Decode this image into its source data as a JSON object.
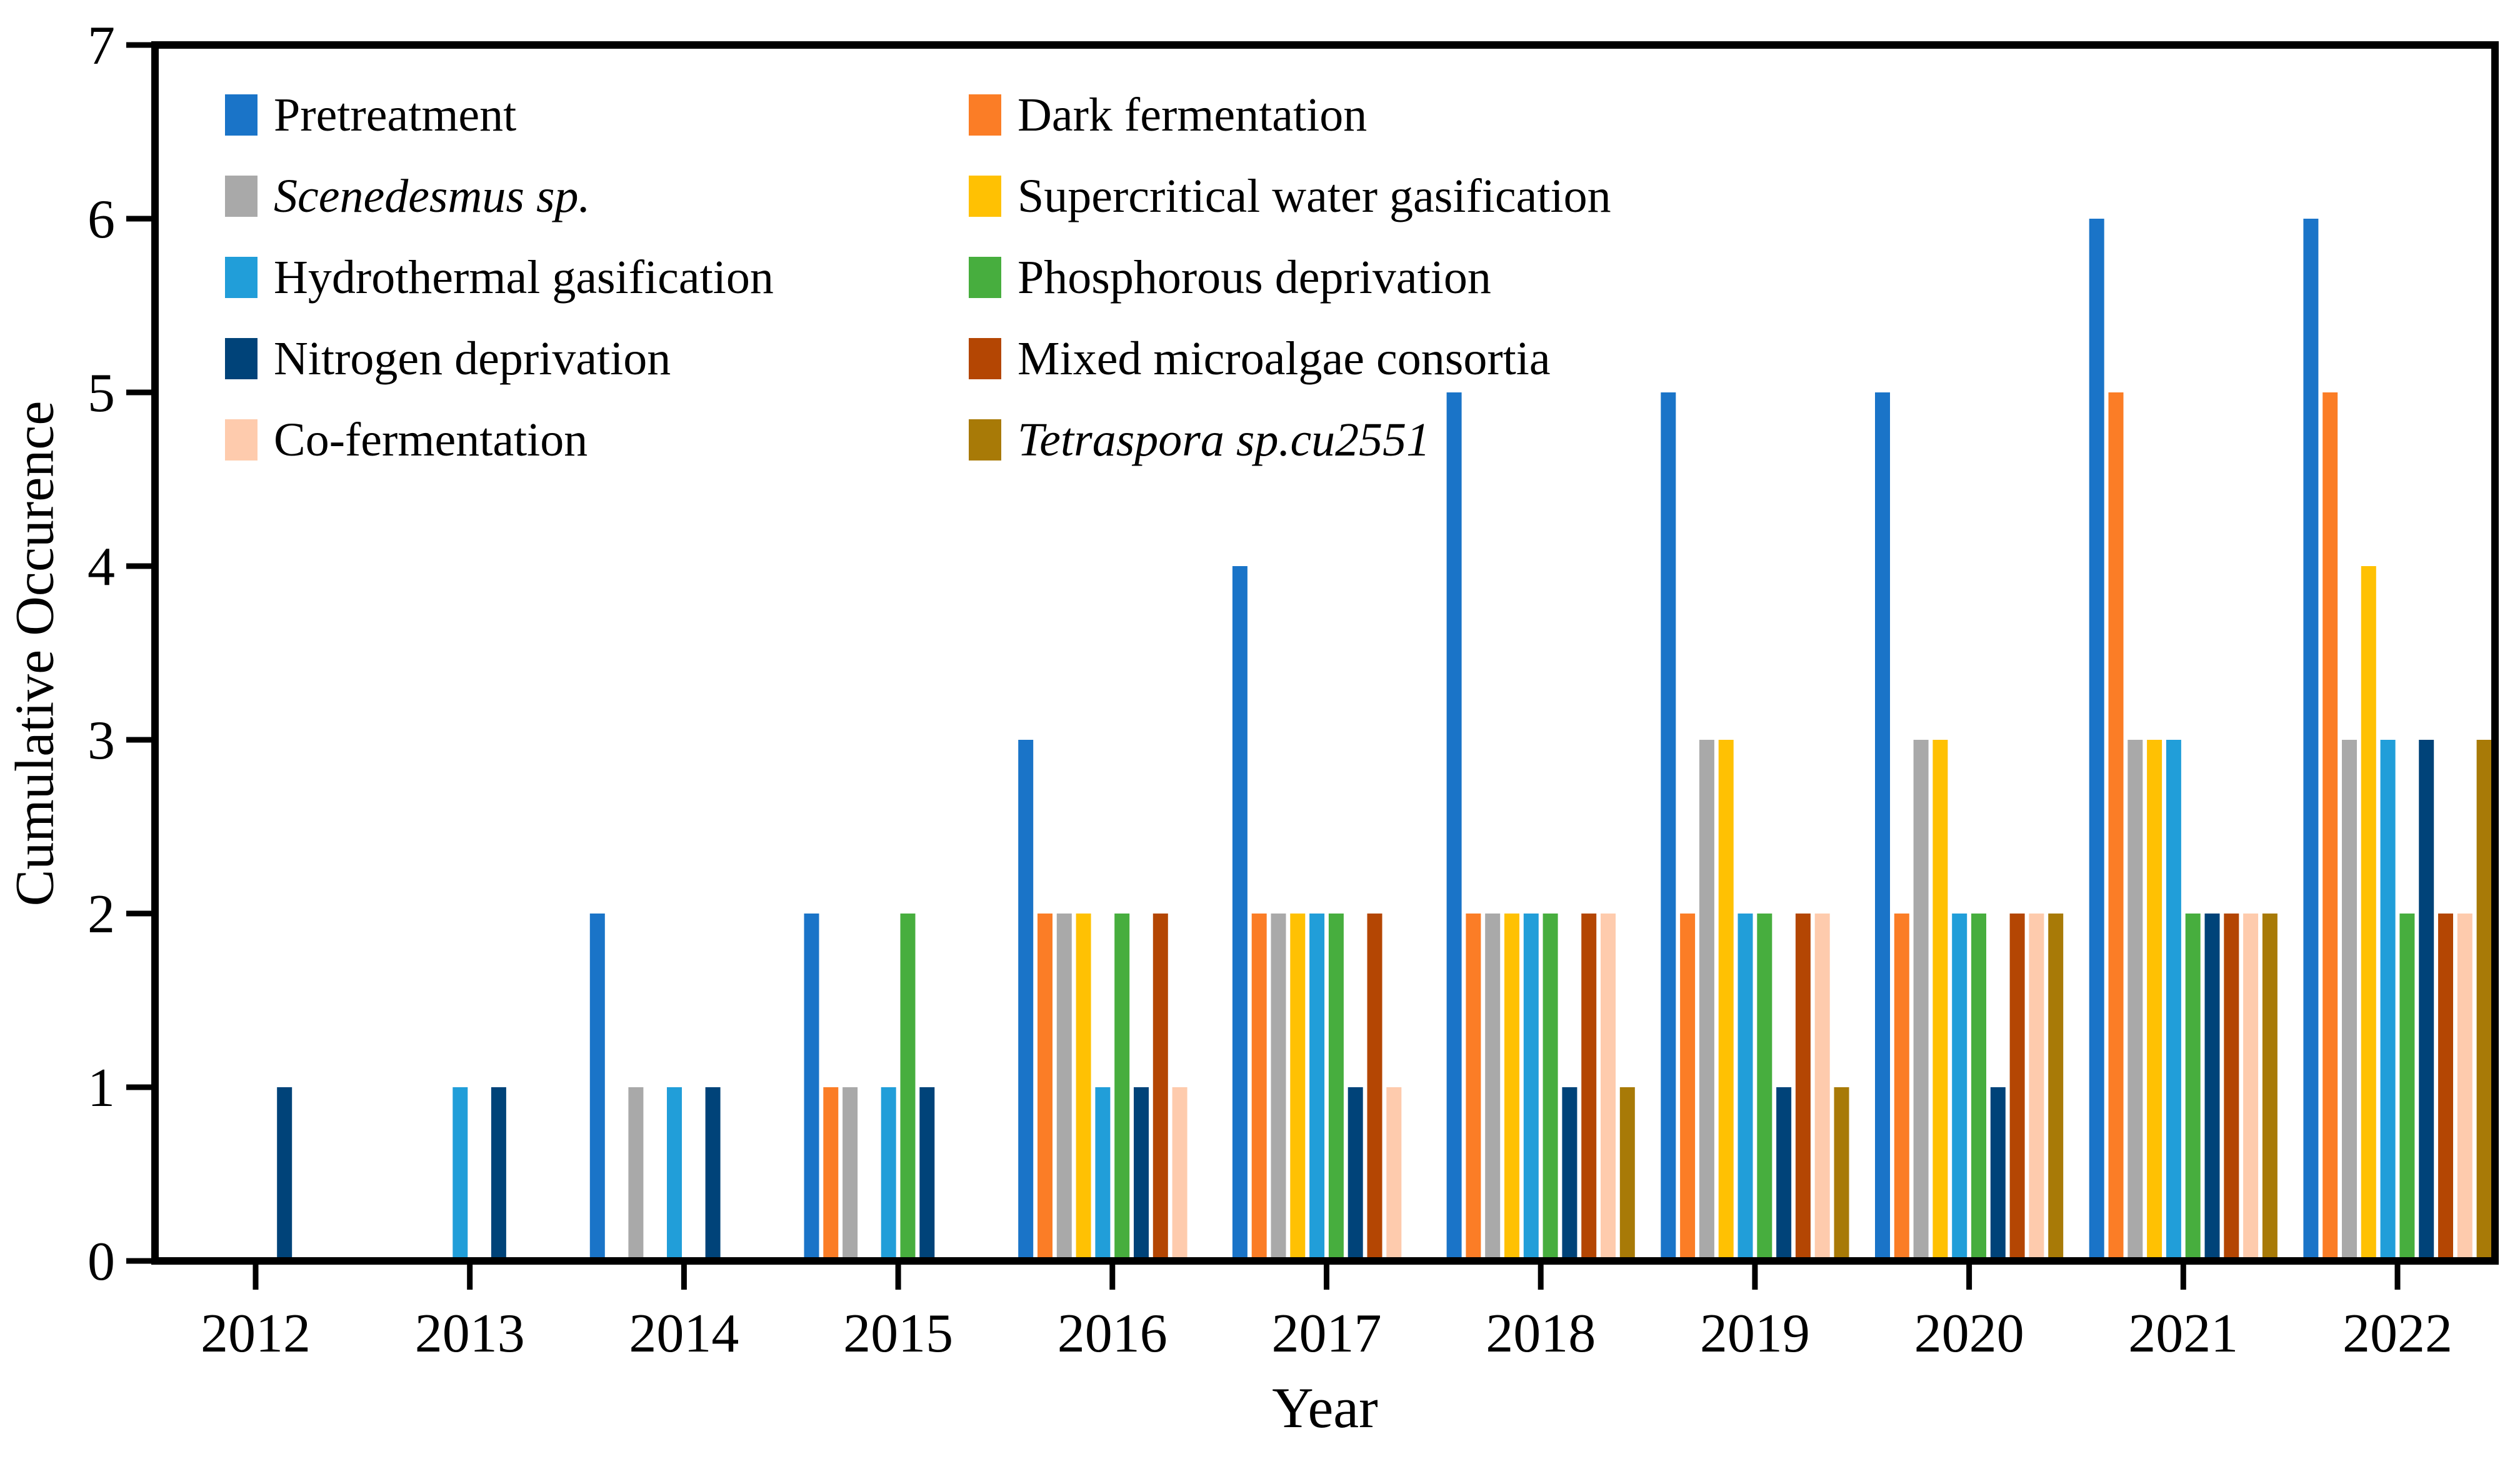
{
  "figure": {
    "background_color": "#ffffff",
    "frame_color": "#000000"
  },
  "chart_data": {
    "type": "bar",
    "title": "",
    "xlabel": "Year",
    "ylabel": "Cumulative Occurence",
    "ylim": [
      0,
      7
    ],
    "y_ticks": [
      "0",
      "1",
      "2",
      "3",
      "4",
      "5",
      "6",
      "7"
    ],
    "grid": false,
    "legend_position": "inside-top-left",
    "legend_columns": 2,
    "categories": [
      "2012",
      "2013",
      "2014",
      "2015",
      "2016",
      "2017",
      "2018",
      "2019",
      "2020",
      "2021",
      "2022"
    ],
    "series": [
      {
        "name": "Pretreatment",
        "color": "#1a74c8",
        "italic": false,
        "values": [
          0,
          0,
          2,
          2,
          3,
          4,
          5,
          5,
          5,
          6,
          6
        ]
      },
      {
        "name": "Dark fermentation",
        "color": "#fb7d26",
        "italic": false,
        "values": [
          0,
          0,
          0,
          1,
          2,
          2,
          2,
          2,
          2,
          5,
          5
        ]
      },
      {
        "name": "Scenedesmus sp.",
        "color": "#a9a9a9",
        "italic": true,
        "values": [
          0,
          0,
          1,
          1,
          2,
          2,
          2,
          3,
          3,
          3,
          3
        ]
      },
      {
        "name": "Supercritical water gasification",
        "color": "#ffc103",
        "italic": false,
        "values": [
          0,
          0,
          0,
          0,
          2,
          2,
          2,
          3,
          3,
          3,
          4
        ]
      },
      {
        "name": "Hydrothermal gasification",
        "color": "#219ed9",
        "italic": false,
        "values": [
          0,
          1,
          1,
          1,
          1,
          2,
          2,
          2,
          2,
          3,
          3
        ]
      },
      {
        "name": "Phosphorous deprivation",
        "color": "#47ae3e",
        "italic": false,
        "values": [
          0,
          0,
          0,
          2,
          2,
          2,
          2,
          2,
          2,
          2,
          2
        ]
      },
      {
        "name": "Nitrogen deprivation",
        "color": "#004379",
        "italic": false,
        "values": [
          1,
          1,
          1,
          1,
          1,
          1,
          1,
          1,
          1,
          2,
          3
        ]
      },
      {
        "name": "Mixed microalgae consortia",
        "color": "#b44603",
        "italic": false,
        "values": [
          0,
          0,
          0,
          0,
          2,
          2,
          2,
          2,
          2,
          2,
          2
        ]
      },
      {
        "name": "Co-fermentation",
        "color": "#fecbad",
        "italic": false,
        "values": [
          0,
          0,
          0,
          0,
          1,
          1,
          2,
          2,
          2,
          2,
          2
        ]
      },
      {
        "name": "Tetraspora sp.cu2551",
        "color": "#a87a07",
        "italic": true,
        "values": [
          0,
          0,
          0,
          0,
          0,
          0,
          1,
          1,
          2,
          2,
          3
        ]
      }
    ]
  }
}
